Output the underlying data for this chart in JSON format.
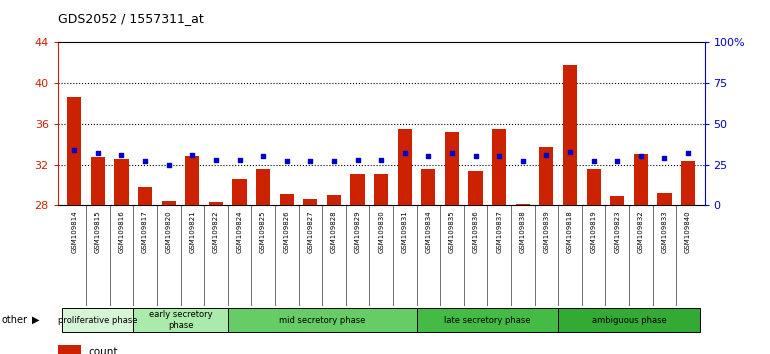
{
  "title": "GDS2052 / 1557311_at",
  "samples": [
    "GSM109814",
    "GSM109815",
    "GSM109816",
    "GSM109817",
    "GSM109820",
    "GSM109821",
    "GSM109822",
    "GSM109824",
    "GSM109825",
    "GSM109826",
    "GSM109827",
    "GSM109828",
    "GSM109829",
    "GSM109830",
    "GSM109831",
    "GSM109834",
    "GSM109835",
    "GSM109836",
    "GSM109837",
    "GSM109838",
    "GSM109839",
    "GSM109818",
    "GSM109819",
    "GSM109823",
    "GSM109832",
    "GSM109833",
    "GSM109840"
  ],
  "count_values": [
    38.6,
    32.7,
    32.6,
    29.8,
    28.4,
    32.8,
    28.3,
    30.6,
    31.6,
    29.1,
    28.6,
    29.0,
    31.1,
    31.1,
    35.5,
    31.6,
    35.2,
    31.4,
    35.5,
    28.1,
    33.7,
    41.8,
    31.6,
    28.9,
    33.0,
    29.2,
    32.4
  ],
  "percentile_pct": [
    34,
    32,
    31,
    27,
    25,
    31,
    28,
    28,
    30,
    27,
    27,
    27,
    28,
    28,
    32,
    30,
    32,
    30,
    30,
    27,
    31,
    33,
    27,
    27,
    30,
    29,
    32
  ],
  "ylim": [
    28,
    44
  ],
  "yticks": [
    28,
    32,
    36,
    40,
    44
  ],
  "right_yticks": [
    0,
    25,
    50,
    75,
    100
  ],
  "right_ylim": [
    0,
    100
  ],
  "phases": [
    {
      "label": "proliferative phase",
      "start": 0,
      "end": 3,
      "color": "#d6f5d6"
    },
    {
      "label": "early secretory\nphase",
      "start": 3,
      "end": 7,
      "color": "#aaeaaa"
    },
    {
      "label": "mid secretory phase",
      "start": 7,
      "end": 15,
      "color": "#66cc66"
    },
    {
      "label": "late secretory phase",
      "start": 15,
      "end": 21,
      "color": "#44bb44"
    },
    {
      "label": "ambiguous phase",
      "start": 21,
      "end": 27,
      "color": "#33aa33"
    }
  ],
  "bar_color_count": "#cc2200",
  "bar_color_pct": "#0000cc",
  "axis_color": "#cc2200",
  "right_axis_color": "#0000cc",
  "plot_bg": "#ffffff",
  "ticklabel_bg": "#d4d4d4"
}
